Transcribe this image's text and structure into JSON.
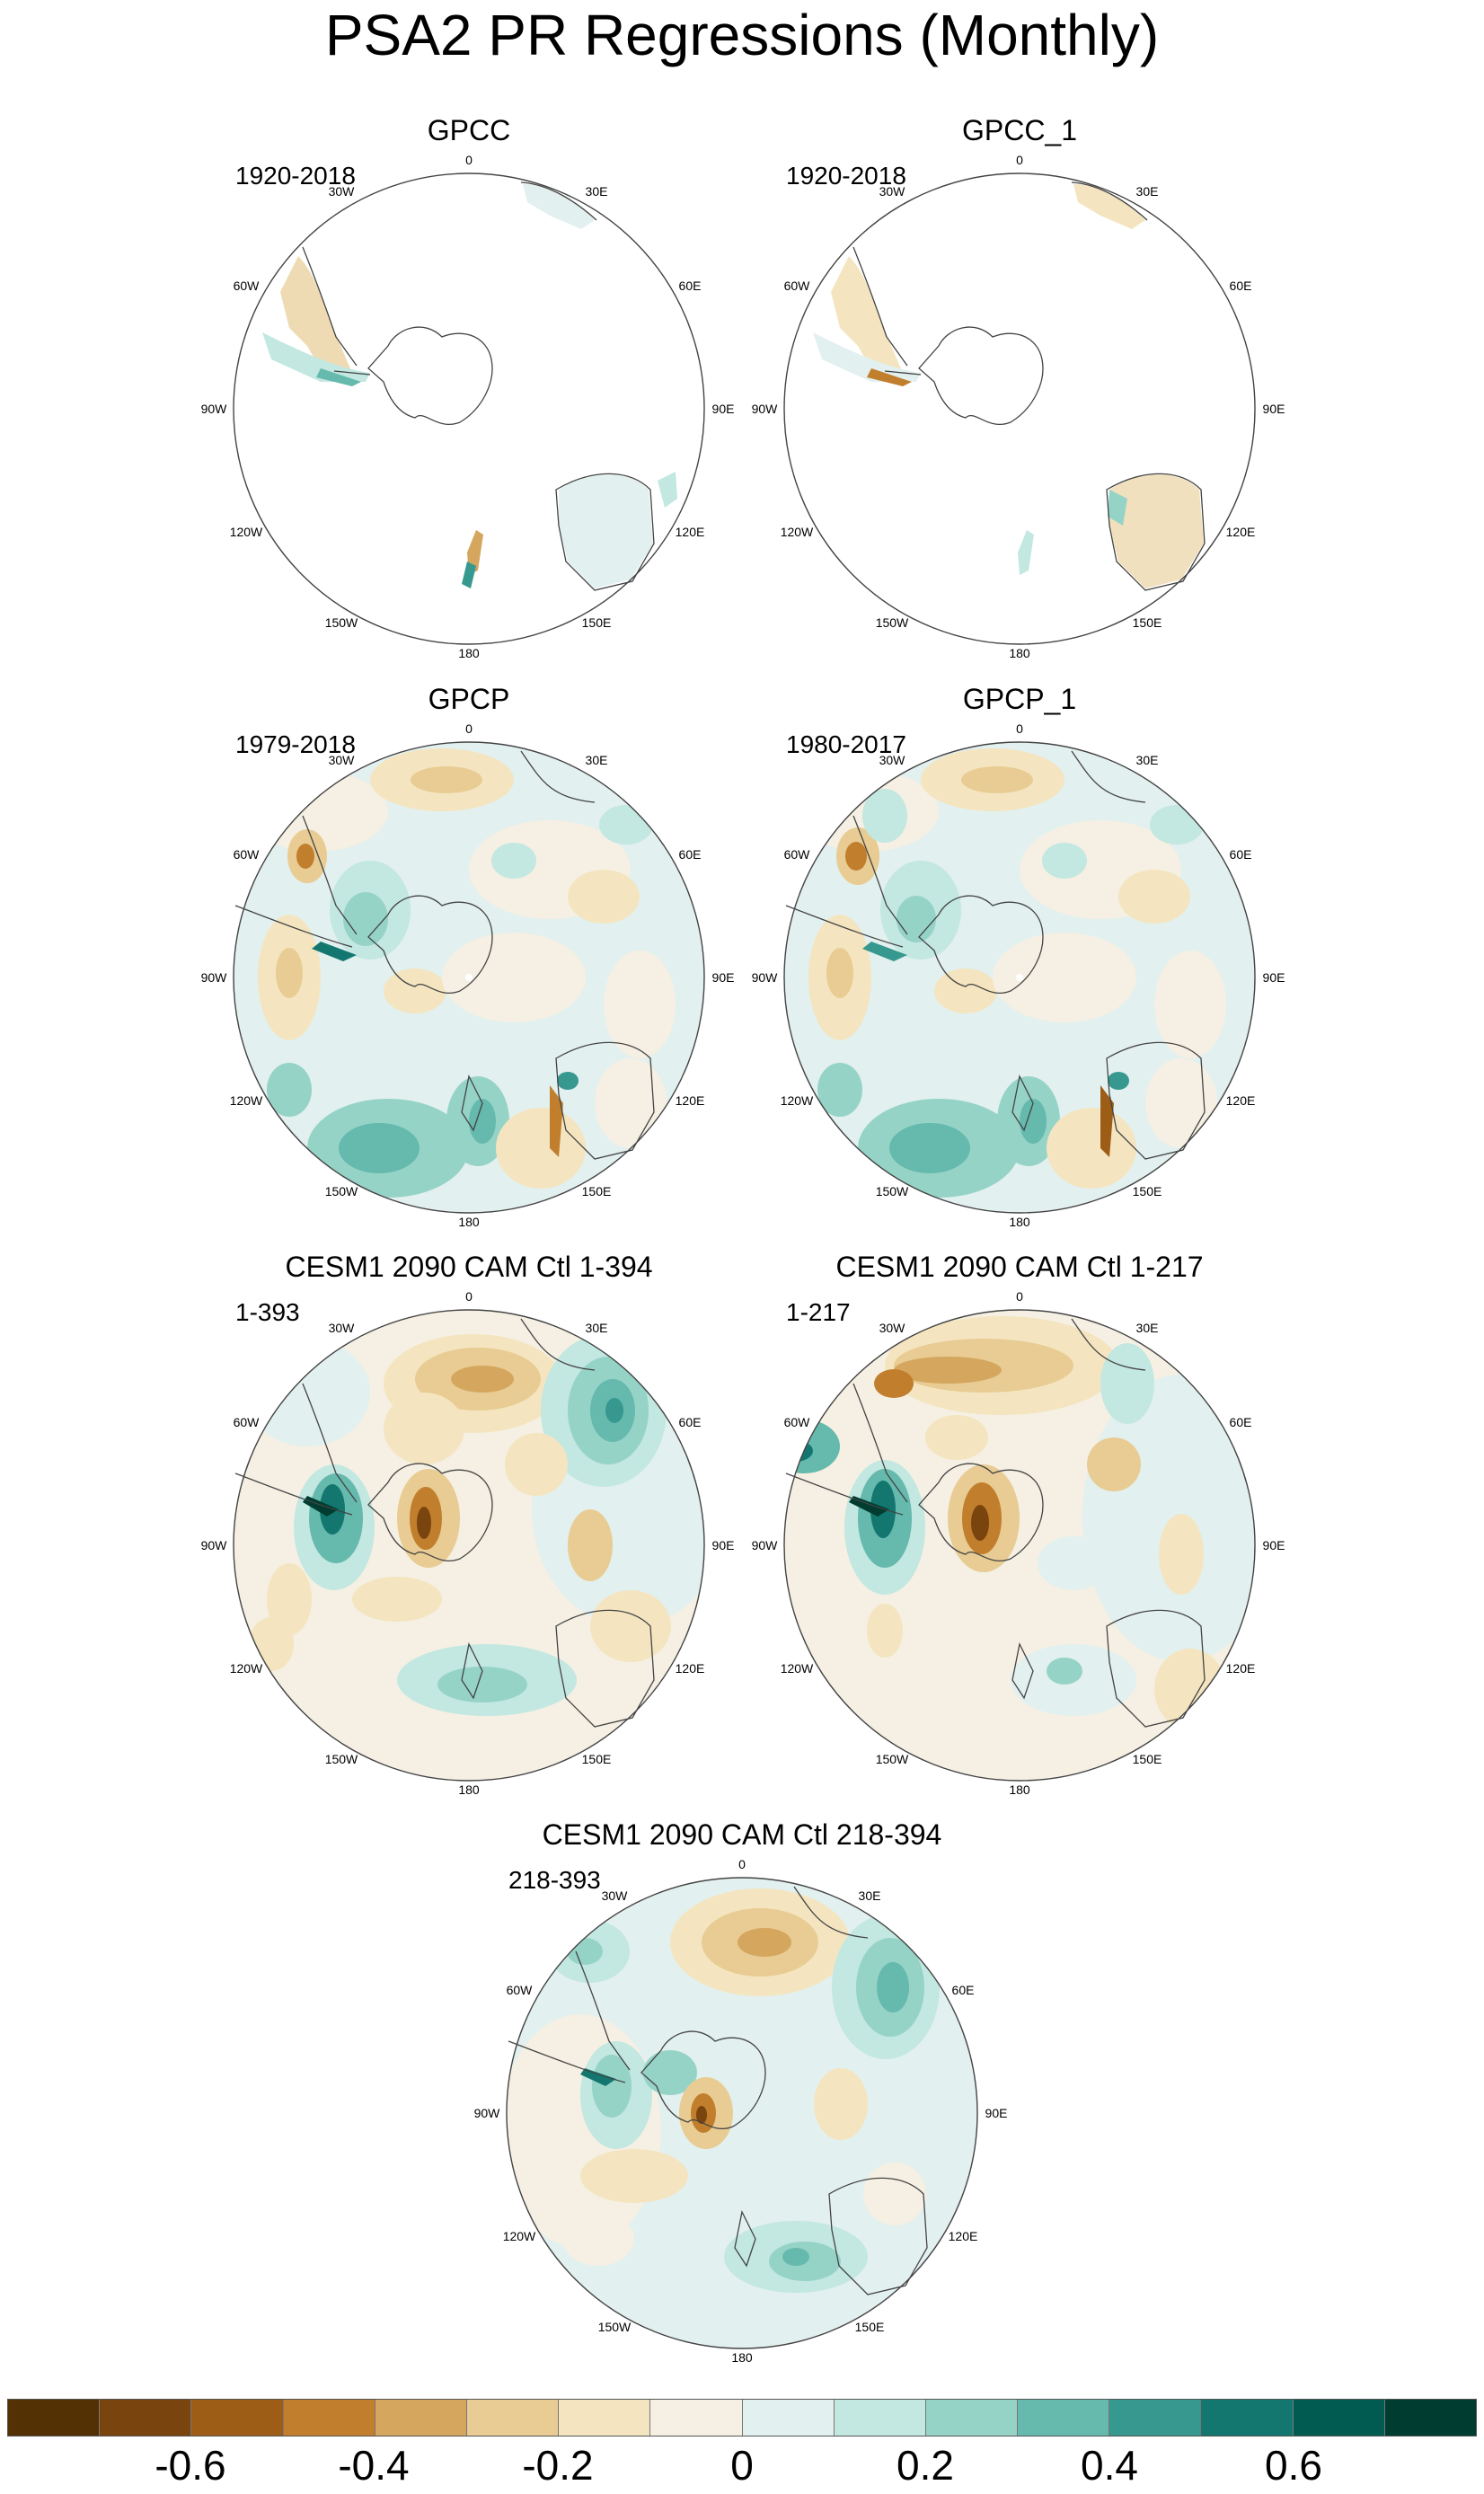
{
  "title": "PSA2 PR Regressions (Monthly)",
  "longitude_labels": [
    "0",
    "30E",
    "60E",
    "90E",
    "120E",
    "150E",
    "180",
    "150W",
    "120W",
    "90W",
    "60W",
    "30W"
  ],
  "panels": [
    {
      "title": "GPCC",
      "range": "1920-2018"
    },
    {
      "title": "GPCC_1",
      "range": "1920-2018"
    },
    {
      "title": "GPCP",
      "range": "1979-2018"
    },
    {
      "title": "GPCP_1",
      "range": "1980-2017"
    },
    {
      "title": "CESM1 2090 CAM Ctl 1-394",
      "range": "1-393"
    },
    {
      "title": "CESM1 2090 CAM Ctl 1-217",
      "range": "1-217"
    },
    {
      "title": "CESM1 2090 CAM Ctl 218-394",
      "range": "218-393"
    }
  ],
  "colorbar": {
    "colors": [
      "#543005",
      "#7a440f",
      "#9e5d17",
      "#c17f2e",
      "#d5a65e",
      "#e8cc93",
      "#f4e5c0",
      "#f5f0e3",
      "#e2f0ef",
      "#c3e7e1",
      "#96d3c7",
      "#65b9ad",
      "#36988e",
      "#137770",
      "#015b51",
      "#003c30"
    ],
    "tick_labels": [
      "-0.6",
      "-0.4",
      "-0.2",
      "0",
      "0.2",
      "0.4",
      "0.6"
    ]
  }
}
